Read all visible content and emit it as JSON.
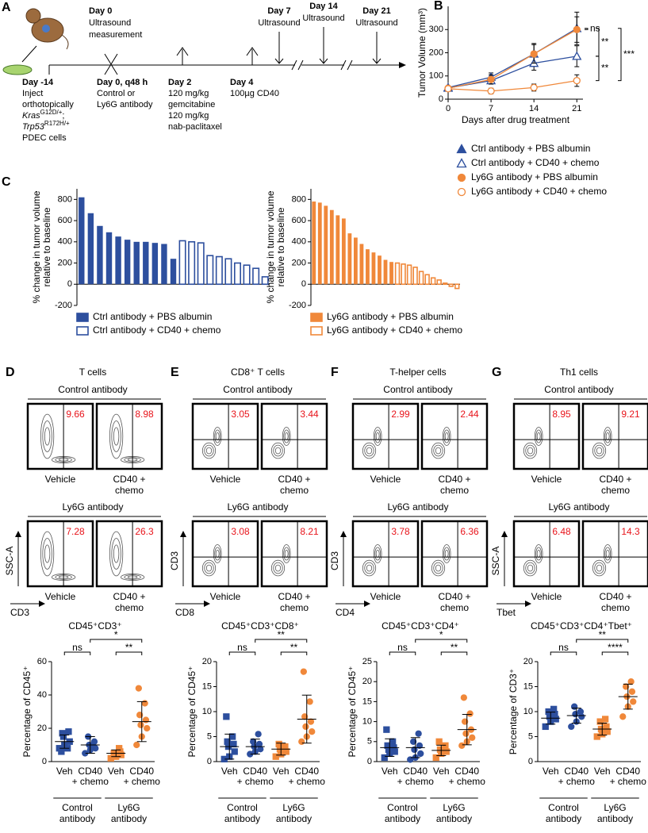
{
  "timeline": {
    "label": "A",
    "events": [
      {
        "day": "Day -14",
        "lines": [
          "Inject",
          "orthotopically"
        ],
        "genotype": [
          {
            "gene": "Kras",
            "allele": "G12D/+",
            "suffix": ";"
          },
          {
            "gene": "Trp53",
            "allele": "R172H/+"
          }
        ],
        "after": [
          "PDEC cells"
        ]
      },
      {
        "day": "Day 0",
        "lines": [
          "Ultrasound",
          "measurement"
        ]
      },
      {
        "day": "Day 0, q48 h",
        "lines": [
          "Control or",
          "Ly6G antibody"
        ]
      },
      {
        "day": "Day 2",
        "lines": [
          "120 mg/kg",
          "gemcitabine",
          "120 mg/kg",
          "nab-paclitaxel"
        ]
      },
      {
        "day": "Day 4",
        "lines": [
          "100µg CD40"
        ]
      },
      {
        "day": "Day 7",
        "lines": [
          "Ultrasound"
        ]
      },
      {
        "day": "Day 14",
        "lines": [
          "Ultrasound"
        ]
      },
      {
        "day": "Day 21",
        "lines": [
          "Ultrasound"
        ]
      }
    ]
  },
  "flow": {
    "groups": [
      "Control antibody",
      "Ly6G antibody"
    ],
    "conditions": [
      [
        "Vehicle"
      ],
      [
        "CD40 +",
        "chemo"
      ]
    ],
    "panels": [
      {
        "label": "D",
        "title": "T cells",
        "y_axis": "SSC-A",
        "x_axis": "CD3",
        "values": [
          [
            9.66,
            8.98
          ],
          [
            7.28,
            26.3
          ]
        ]
      },
      {
        "label": "E",
        "title": "CD8⁺ T cells",
        "y_axis": "CD3",
        "x_axis": "CD8",
        "values": [
          [
            3.05,
            3.44
          ],
          [
            3.08,
            8.21
          ]
        ]
      },
      {
        "label": "F",
        "title": "T-helper cells",
        "y_axis": "CD3",
        "x_axis": "CD4",
        "values": [
          [
            2.99,
            2.44
          ],
          [
            3.78,
            6.36
          ]
        ]
      },
      {
        "label": "G",
        "title": "Th1 cells",
        "y_axis": "SSC-A",
        "x_axis": "Tbet",
        "values": [
          [
            8.95,
            9.21
          ],
          [
            6.48,
            14.3
          ]
        ]
      }
    ]
  },
  "chart_data": [
    {
      "type": "line",
      "panel": "B",
      "xlabel": "Days after drug treatment",
      "ylabel": "Tumor Volume (mm³)",
      "x": [
        0,
        7,
        14,
        21
      ],
      "xlim": [
        0,
        22
      ],
      "xticks": [
        0,
        7,
        14,
        21
      ],
      "ylim": [
        0,
        400
      ],
      "yticks": [
        0,
        100,
        200,
        300
      ],
      "series": [
        {
          "name": "Ctrl antibody + PBS albumin",
          "color": "#2d4f9e",
          "marker": "triangle",
          "filled": true,
          "values": [
            50,
            95,
            195,
            305
          ],
          "errors": [
            8,
            18,
            45,
            70
          ]
        },
        {
          "name": "Ctrl antibody + CD40 + chemo",
          "color": "#2d4f9e",
          "marker": "triangle",
          "filled": false,
          "values": [
            48,
            80,
            155,
            185
          ],
          "errors": [
            8,
            15,
            30,
            45
          ]
        },
        {
          "name": "Ly6G antibody + PBS albumin",
          "color": "#f0883a",
          "marker": "circle",
          "filled": true,
          "values": [
            47,
            85,
            195,
            300
          ],
          "errors": [
            8,
            20,
            40,
            55
          ]
        },
        {
          "name": "Ly6G antibody + CD40 + chemo",
          "color": "#f0883a",
          "marker": "circle",
          "filled": false,
          "values": [
            45,
            35,
            50,
            80
          ],
          "errors": [
            8,
            12,
            15,
            25
          ]
        }
      ],
      "annotations": [
        {
          "label": "ns",
          "series": [
            0,
            2
          ]
        },
        {
          "label": "**",
          "series": [
            0,
            1
          ]
        },
        {
          "label": "**",
          "series": [
            1,
            3
          ]
        },
        {
          "label": "***",
          "series": [
            0,
            3
          ]
        }
      ]
    },
    {
      "type": "bar",
      "panel": "C",
      "ylabel": [
        "% change in tumor volume",
        "relative to baseline"
      ],
      "categories": [
        null,
        null,
        null,
        null,
        null,
        null,
        null,
        null,
        null,
        null,
        null,
        null,
        null,
        null,
        null,
        null,
        null,
        null,
        null,
        null,
        null
      ],
      "ylim": [
        -200,
        900
      ],
      "yticks": [
        -200,
        0,
        200,
        400,
        600,
        800
      ],
      "series": [
        {
          "name": "Ctrl antibody + PBS albumin",
          "color": "#2d4f9e",
          "filled": true,
          "values": [
            820,
            670,
            550,
            490,
            450,
            420,
            400,
            400,
            390,
            380,
            240,
            null,
            null,
            null,
            null,
            null,
            null,
            null,
            null,
            null,
            null
          ]
        },
        {
          "name": "Ctrl antibody + CD40 + chemo",
          "color": "#2d4f9e",
          "filled": false,
          "values": [
            null,
            null,
            null,
            null,
            null,
            null,
            null,
            null,
            null,
            null,
            null,
            410,
            400,
            390,
            270,
            260,
            240,
            200,
            180,
            150,
            70
          ]
        }
      ]
    },
    {
      "type": "bar",
      "ylabel": [
        "% change in tumor volume",
        "relative to baseline"
      ],
      "categories": [
        null,
        null,
        null,
        null,
        null,
        null,
        null,
        null,
        null,
        null,
        null,
        null,
        null,
        null,
        null,
        null,
        null,
        null,
        null,
        null,
        null,
        null,
        null,
        null,
        null
      ],
      "ylim": [
        -200,
        900
      ],
      "yticks": [
        -200,
        0,
        200,
        400,
        600,
        800
      ],
      "series": [
        {
          "name": "Ly6G antibody + PBS albumin",
          "color": "#f0883a",
          "filled": true,
          "values": [
            780,
            770,
            740,
            700,
            650,
            620,
            480,
            440,
            380,
            330,
            300,
            270,
            230,
            210,
            null,
            null,
            null,
            null,
            null,
            null,
            null,
            null,
            null,
            null,
            null
          ]
        },
        {
          "name": "Ly6G antibody + CD40 + chemo",
          "color": "#f0883a",
          "filled": false,
          "values": [
            null,
            null,
            null,
            null,
            null,
            null,
            null,
            null,
            null,
            null,
            null,
            null,
            null,
            null,
            200,
            190,
            180,
            160,
            120,
            90,
            60,
            40,
            10,
            -20,
            -40
          ]
        }
      ]
    },
    {
      "type": "dot",
      "title": "CD45⁺CD3⁺",
      "ylabel": "Percentage of CD45⁺",
      "ylim": [
        0,
        60
      ],
      "yticks": [
        0,
        20,
        40,
        60
      ],
      "categories": [
        [
          "Veh"
        ],
        [
          "CD40",
          "+ chemo"
        ],
        [
          "Veh"
        ],
        [
          "CD40",
          "+ chemo"
        ]
      ],
      "groups": [
        {
          "label": [
            "Control",
            "antibody"
          ],
          "color": "#2d4f9e"
        },
        {
          "label": [
            "Ly6G",
            "antibody"
          ],
          "color": "#f0883a"
        }
      ],
      "colors": [
        "#2d4f9e",
        "#2d4f9e",
        "#f0883a",
        "#f0883a"
      ],
      "markers": [
        "square",
        "circle",
        "square",
        "circle"
      ],
      "values": [
        [
          8,
          10,
          12,
          15,
          18,
          17,
          8,
          6
        ],
        [
          5,
          7,
          8,
          10,
          12,
          15,
          9
        ],
        [
          2,
          3,
          4,
          5,
          6,
          5,
          8
        ],
        [
          10,
          15,
          20,
          22,
          25,
          28,
          35,
          44
        ]
      ],
      "means": [
        12,
        10,
        5,
        24
      ],
      "sds": [
        4,
        5,
        2,
        12
      ],
      "brackets": [
        {
          "from": 0,
          "to": 1,
          "label": "ns"
        },
        {
          "from": 1,
          "to": 3,
          "label": "*"
        },
        {
          "from": 2,
          "to": 3,
          "label": "**"
        }
      ]
    },
    {
      "type": "dot",
      "title": "CD45⁺CD3⁺CD8⁺",
      "ylabel": "Percentage of CD45⁺",
      "ylim": [
        0,
        20
      ],
      "yticks": [
        0,
        5,
        10,
        15,
        20
      ],
      "categories": [
        [
          "Veh"
        ],
        [
          "CD40",
          "+ chemo"
        ],
        [
          "Veh"
        ],
        [
          "CD40",
          "+ chemo"
        ]
      ],
      "groups": [
        {
          "label": [
            "Control",
            "antibody"
          ],
          "color": "#2d4f9e"
        },
        {
          "label": [
            "Ly6G",
            "antibody"
          ],
          "color": "#f0883a"
        }
      ],
      "colors": [
        "#2d4f9e",
        "#2d4f9e",
        "#f0883a",
        "#f0883a"
      ],
      "markers": [
        "square",
        "circle",
        "square",
        "circle"
      ],
      "values": [
        [
          0.5,
          1,
          2,
          3,
          3.5,
          4,
          5,
          9
        ],
        [
          1.5,
          2,
          2.5,
          3,
          3.5,
          4,
          5.5
        ],
        [
          1,
          1.5,
          2,
          2.5,
          3,
          3.5
        ],
        [
          4,
          5,
          6,
          7,
          8,
          9,
          12,
          18
        ]
      ],
      "means": [
        3,
        3,
        2.5,
        8.5
      ],
      "sds": [
        2.5,
        1.5,
        1.2,
        4.8
      ],
      "brackets": [
        {
          "from": 0,
          "to": 1,
          "label": "ns"
        },
        {
          "from": 1,
          "to": 3,
          "label": "**"
        },
        {
          "from": 2,
          "to": 3,
          "label": "**"
        }
      ]
    },
    {
      "type": "dot",
      "title": "CD45⁺CD3⁺CD4⁺",
      "ylabel": "Percentage of CD45⁺",
      "ylim": [
        0,
        25
      ],
      "yticks": [
        0,
        5,
        10,
        15,
        20,
        25
      ],
      "categories": [
        [
          "Veh"
        ],
        [
          "CD40",
          "+ chemo"
        ],
        [
          "Veh"
        ],
        [
          "CD40",
          "+ chemo"
        ]
      ],
      "groups": [
        {
          "label": [
            "Control",
            "antibody"
          ],
          "color": "#2d4f9e"
        },
        {
          "label": [
            "Ly6G",
            "antibody"
          ],
          "color": "#f0883a"
        }
      ],
      "colors": [
        "#2d4f9e",
        "#2d4f9e",
        "#f0883a",
        "#f0883a"
      ],
      "markers": [
        "square",
        "circle",
        "square",
        "circle"
      ],
      "values": [
        [
          1,
          2,
          2.5,
          3,
          3.5,
          4,
          5,
          8
        ],
        [
          0.5,
          1,
          2,
          3,
          4,
          5,
          7
        ],
        [
          1,
          2,
          2.5,
          3,
          4,
          5
        ],
        [
          4,
          5,
          6,
          7,
          8,
          10,
          12,
          16
        ]
      ],
      "means": [
        3.5,
        3.5,
        2.8,
        8
      ],
      "sds": [
        2.2,
        2.5,
        1.3,
        3.8
      ],
      "brackets": [
        {
          "from": 0,
          "to": 1,
          "label": "ns"
        },
        {
          "from": 1,
          "to": 3,
          "label": "*"
        },
        {
          "from": 2,
          "to": 3,
          "label": "**"
        }
      ]
    },
    {
      "type": "dot",
      "title": "CD45⁺CD3⁺CD4⁺Tbet⁺",
      "ylabel": "Percentage of CD3⁺",
      "ylim": [
        0,
        20
      ],
      "yticks": [
        0,
        5,
        10,
        15,
        20
      ],
      "categories": [
        [
          "Veh"
        ],
        [
          "CD40",
          "+ chemo"
        ],
        [
          "Veh"
        ],
        [
          "CD40",
          "+ chemo"
        ]
      ],
      "groups": [
        {
          "label": [
            "Control",
            "antibody"
          ],
          "color": "#2d4f9e"
        },
        {
          "label": [
            "Ly6G",
            "antibody"
          ],
          "color": "#f0883a"
        }
      ],
      "colors": [
        "#2d4f9e",
        "#2d4f9e",
        "#f0883a",
        "#f0883a"
      ],
      "markers": [
        "square",
        "circle",
        "square",
        "circle"
      ],
      "values": [
        [
          7,
          8,
          8.5,
          9,
          9.5,
          10,
          10.5
        ],
        [
          7,
          8,
          9,
          9.5,
          10,
          11
        ],
        [
          5,
          5.5,
          6,
          6.5,
          7,
          8,
          8.5
        ],
        [
          9,
          11,
          12,
          13,
          14,
          15,
          16
        ]
      ],
      "means": [
        8.7,
        9.2,
        6.5,
        13
      ],
      "sds": [
        1.2,
        1.5,
        1.2,
        2.5
      ],
      "brackets": [
        {
          "from": 0,
          "to": 1,
          "label": "ns"
        },
        {
          "from": 1,
          "to": 3,
          "label": "**"
        },
        {
          "from": 2,
          "to": 3,
          "label": "****"
        }
      ]
    }
  ]
}
